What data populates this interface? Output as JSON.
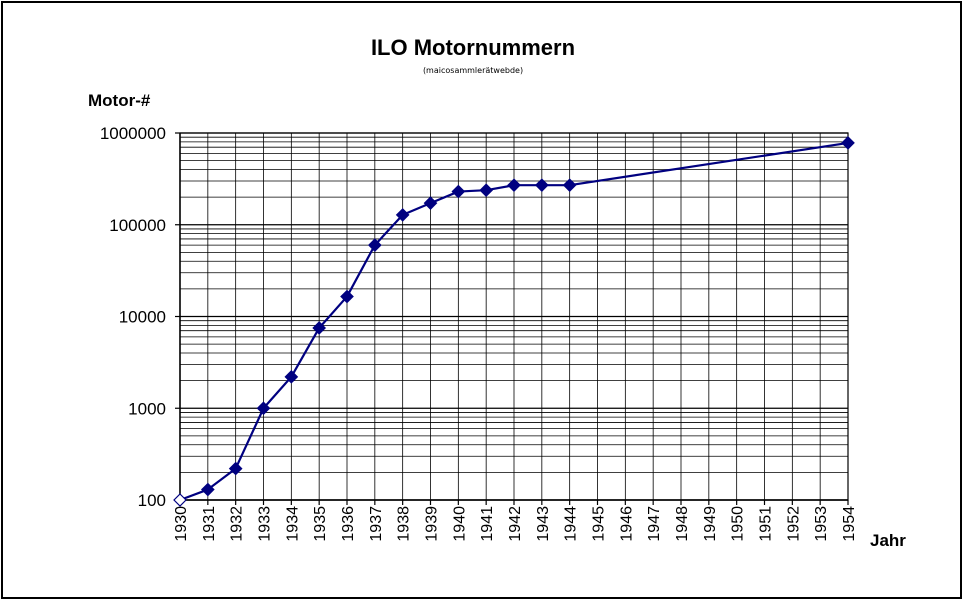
{
  "chart_data": {
    "type": "line",
    "title": "ILO Motornummern",
    "subtitle": "(maicosammlerätwebde)",
    "ylabel": "Motor-#",
    "xlabel": "Jahr",
    "yscale": "log",
    "ylim": [
      100,
      1000000
    ],
    "yticks": [
      "100",
      "1000",
      "10000",
      "100000",
      "1000000"
    ],
    "xlim": [
      1930,
      1954
    ],
    "xticks": [
      "1930",
      "1931",
      "1932",
      "1933",
      "1934",
      "1935",
      "1936",
      "1937",
      "1938",
      "1939",
      "1940",
      "1941",
      "1942",
      "1943",
      "1944",
      "1945",
      "1946",
      "1947",
      "1948",
      "1949",
      "1950",
      "1951",
      "1952",
      "1953",
      "1954"
    ],
    "grid": true,
    "series": [
      {
        "name": "Motornummern",
        "color": "#000080",
        "marker": "diamond",
        "points": [
          {
            "x": 1930,
            "y": 100
          },
          {
            "x": 1931,
            "y": 130
          },
          {
            "x": 1932,
            "y": 220
          },
          {
            "x": 1933,
            "y": 1000
          },
          {
            "x": 1934,
            "y": 2200
          },
          {
            "x": 1935,
            "y": 7500
          },
          {
            "x": 1936,
            "y": 16500
          },
          {
            "x": 1937,
            "y": 60000
          },
          {
            "x": 1938,
            "y": 128000
          },
          {
            "x": 1939,
            "y": 172000
          },
          {
            "x": 1940,
            "y": 230000
          },
          {
            "x": 1941,
            "y": 238000
          },
          {
            "x": 1942,
            "y": 270000
          },
          {
            "x": 1943,
            "y": 270000
          },
          {
            "x": 1944,
            "y": 270000
          },
          {
            "x": 1954,
            "y": 780000
          }
        ]
      }
    ]
  }
}
